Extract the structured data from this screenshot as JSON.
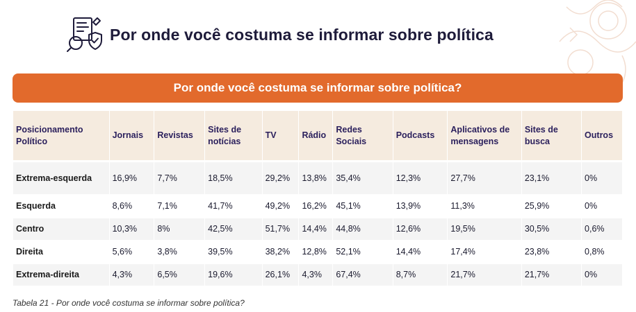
{
  "header": {
    "title": "Por onde você costuma se informar sobre política",
    "icon": "document-magnifier-shield-icon"
  },
  "banner": {
    "title": "Por onde você costuma se informar sobre política?",
    "color": "#e26a2c"
  },
  "table": {
    "columns": [
      "Posicionamento Político",
      "Jornais",
      "Revistas",
      "Sites de notícias",
      "TV",
      "Rádio",
      "Redes Sociais",
      "Podcasts",
      "Aplicativos de mensagens",
      "Sites de busca",
      "Outros"
    ],
    "rows": [
      {
        "label": "Extrema-esquerda",
        "values": [
          "16,9%",
          "7,7%",
          "18,5%",
          "29,2%",
          "13,8%",
          "35,4%",
          "12,3%",
          "27,7%",
          "23,1%",
          "0%"
        ]
      },
      {
        "label": "Esquerda",
        "values": [
          "8,6%",
          "7,1%",
          "41,7%",
          "49,2%",
          "16,2%",
          "45,1%",
          "13,9%",
          "11,3%",
          "25,9%",
          "0%"
        ]
      },
      {
        "label": "Centro",
        "values": [
          "10,3%",
          "8%",
          "42,5%",
          "51,7%",
          "14,4%",
          "44,8%",
          "12,6%",
          "19,5%",
          "30,5%",
          "0,6%"
        ]
      },
      {
        "label": "Direita",
        "values": [
          "5,6%",
          "3,8%",
          "39,5%",
          "38,2%",
          "12,8%",
          "52,1%",
          "14,4%",
          "17,4%",
          "23,8%",
          "0,8%"
        ]
      },
      {
        "label": "Extrema-direita",
        "values": [
          "4,3%",
          "6,5%",
          "19,6%",
          "26,1%",
          "4,3%",
          "67,4%",
          "8,7%",
          "21,7%",
          "21,7%",
          "0%"
        ]
      }
    ]
  },
  "caption": "Tabela 21 - Por onde você costuma se informar sobre política?"
}
